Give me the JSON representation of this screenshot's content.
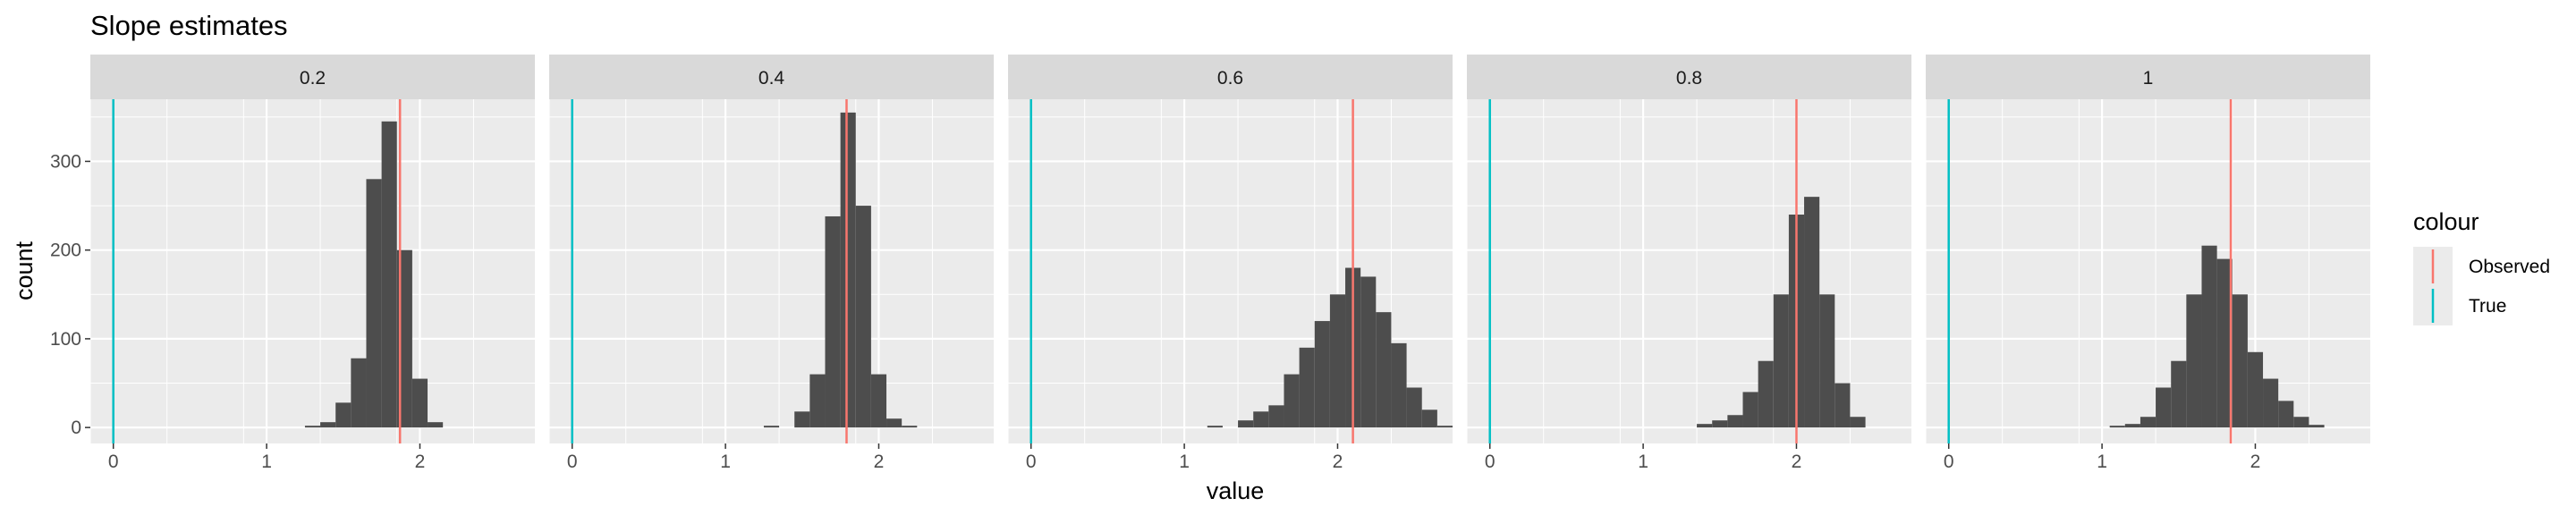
{
  "chart_data": {
    "type": "bar",
    "title": "Slope estimates",
    "xlabel": "value",
    "ylabel": "count",
    "xlim": [
      -0.15,
      2.75
    ],
    "ylim": [
      -18,
      370
    ],
    "x_ticks": [
      0,
      1,
      2
    ],
    "y_ticks": [
      0,
      100,
      200,
      300
    ],
    "bin_width": 0.1,
    "grid": true,
    "legend": {
      "title": "colour",
      "position": "right",
      "entries": [
        {
          "label": "Observed",
          "color": "#F8766D"
        },
        {
          "label": "True",
          "color": "#00BFC4"
        }
      ]
    },
    "reference_lines": {
      "True": 0
    },
    "panels": [
      {
        "label": "0.2",
        "observed": 1.87,
        "bins": [
          {
            "x": 1.3,
            "count": 2
          },
          {
            "x": 1.4,
            "count": 6
          },
          {
            "x": 1.5,
            "count": 28
          },
          {
            "x": 1.6,
            "count": 78
          },
          {
            "x": 1.7,
            "count": 280
          },
          {
            "x": 1.8,
            "count": 345
          },
          {
            "x": 1.9,
            "count": 200
          },
          {
            "x": 2.0,
            "count": 55
          },
          {
            "x": 2.1,
            "count": 6
          }
        ]
      },
      {
        "label": "0.4",
        "observed": 1.79,
        "bins": [
          {
            "x": 1.3,
            "count": 2
          },
          {
            "x": 1.5,
            "count": 18
          },
          {
            "x": 1.6,
            "count": 60
          },
          {
            "x": 1.7,
            "count": 238
          },
          {
            "x": 1.8,
            "count": 355
          },
          {
            "x": 1.9,
            "count": 250
          },
          {
            "x": 2.0,
            "count": 60
          },
          {
            "x": 2.1,
            "count": 10
          },
          {
            "x": 2.2,
            "count": 2
          }
        ]
      },
      {
        "label": "0.6",
        "observed": 2.1,
        "bins": [
          {
            "x": 1.2,
            "count": 2
          },
          {
            "x": 1.4,
            "count": 8
          },
          {
            "x": 1.5,
            "count": 18
          },
          {
            "x": 1.6,
            "count": 25
          },
          {
            "x": 1.7,
            "count": 60
          },
          {
            "x": 1.8,
            "count": 90
          },
          {
            "x": 1.9,
            "count": 120
          },
          {
            "x": 2.0,
            "count": 150
          },
          {
            "x": 2.1,
            "count": 180
          },
          {
            "x": 2.2,
            "count": 170
          },
          {
            "x": 2.3,
            "count": 130
          },
          {
            "x": 2.4,
            "count": 95
          },
          {
            "x": 2.5,
            "count": 45
          },
          {
            "x": 2.6,
            "count": 20
          },
          {
            "x": 2.7,
            "count": 2
          }
        ]
      },
      {
        "label": "0.8",
        "observed": 2.0,
        "bins": [
          {
            "x": 1.4,
            "count": 4
          },
          {
            "x": 1.5,
            "count": 8
          },
          {
            "x": 1.6,
            "count": 14
          },
          {
            "x": 1.7,
            "count": 40
          },
          {
            "x": 1.8,
            "count": 75
          },
          {
            "x": 1.9,
            "count": 150
          },
          {
            "x": 2.0,
            "count": 240
          },
          {
            "x": 2.1,
            "count": 260
          },
          {
            "x": 2.2,
            "count": 150
          },
          {
            "x": 2.3,
            "count": 50
          },
          {
            "x": 2.4,
            "count": 12
          }
        ]
      },
      {
        "label": "1",
        "observed": 1.84,
        "bins": [
          {
            "x": 1.1,
            "count": 2
          },
          {
            "x": 1.2,
            "count": 4
          },
          {
            "x": 1.3,
            "count": 12
          },
          {
            "x": 1.4,
            "count": 45
          },
          {
            "x": 1.5,
            "count": 75
          },
          {
            "x": 1.6,
            "count": 150
          },
          {
            "x": 1.7,
            "count": 205
          },
          {
            "x": 1.8,
            "count": 190
          },
          {
            "x": 1.9,
            "count": 150
          },
          {
            "x": 2.0,
            "count": 85
          },
          {
            "x": 2.1,
            "count": 55
          },
          {
            "x": 2.2,
            "count": 30
          },
          {
            "x": 2.3,
            "count": 12
          },
          {
            "x": 2.4,
            "count": 3
          }
        ]
      }
    ]
  },
  "style": {
    "panel_bg": "#EBEBEB",
    "strip_bg": "#D9D9D9",
    "grid_color": "#FFFFFF",
    "bar_color": "#4D4D4D",
    "observed_color": "#F8766D",
    "true_color": "#00BFC4"
  }
}
